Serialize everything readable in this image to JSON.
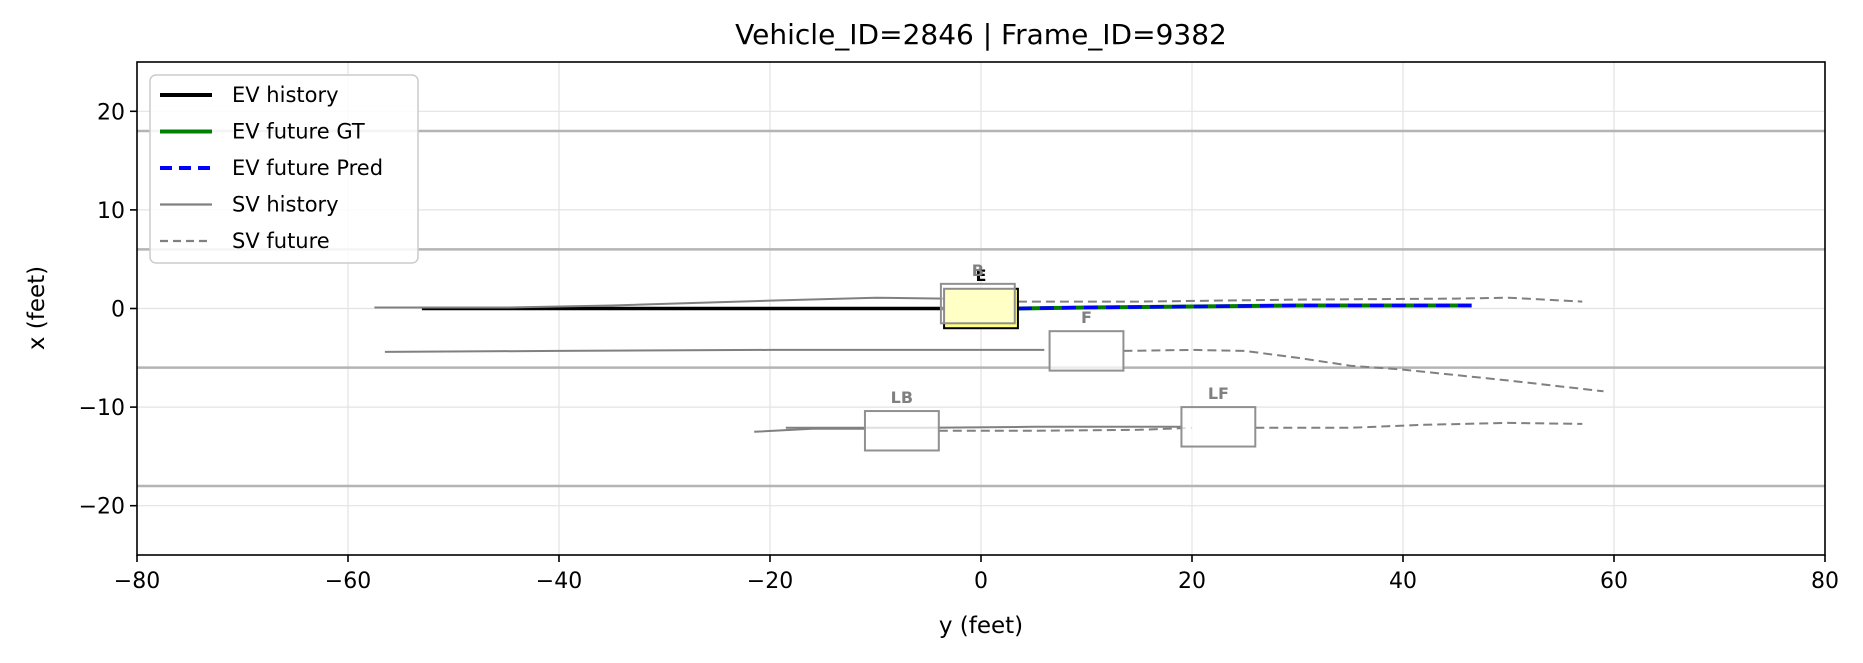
{
  "chart_data": {
    "type": "line",
    "title": "Vehicle_ID=2846  |  Frame_ID=9382",
    "xlabel": "y (feet)",
    "ylabel": "x (feet)",
    "xlim": [
      -80,
      80
    ],
    "ylim": [
      -25,
      25
    ],
    "xticks": [
      -80,
      -60,
      -40,
      -20,
      0,
      20,
      40,
      60,
      80
    ],
    "yticks": [
      -20,
      -10,
      0,
      10,
      20
    ],
    "xtick_labels": [
      "−80",
      "−60",
      "−40",
      "−20",
      "0",
      "20",
      "40",
      "60",
      "80"
    ],
    "ytick_labels": [
      "−20",
      "−10",
      "0",
      "10",
      "20"
    ],
    "grid": true,
    "legend_position": "top-left",
    "lane_lines": [
      18,
      6,
      -6,
      -18
    ],
    "legend": [
      {
        "label": "EV history",
        "color": "#000000",
        "dash": "solid",
        "width": 4
      },
      {
        "label": "EV future GT",
        "color": "#008000",
        "dash": "solid",
        "width": 4
      },
      {
        "label": "EV future Pred",
        "color": "#0000ff",
        "dash": "dashed",
        "width": 4
      },
      {
        "label": "SV history",
        "color": "#808080",
        "dash": "solid",
        "width": 2.2
      },
      {
        "label": "SV future",
        "color": "#808080",
        "dash": "dashed",
        "width": 2.2
      }
    ],
    "series": [
      {
        "name": "EV history",
        "color": "#000000",
        "dash": "solid",
        "width": 3.5,
        "points": [
          [
            -53,
            0
          ],
          [
            -40,
            0
          ],
          [
            -20,
            0
          ],
          [
            -3.5,
            0
          ]
        ]
      },
      {
        "name": "EV future GT",
        "color": "#008000",
        "dash": "solid",
        "width": 4,
        "points": [
          [
            3.5,
            0
          ],
          [
            10,
            0.1
          ],
          [
            20,
            0.2
          ],
          [
            30,
            0.3
          ],
          [
            40,
            0.3
          ],
          [
            46.5,
            0.3
          ]
        ]
      },
      {
        "name": "EV future Pred",
        "color": "#0000ff",
        "dash": "dashed",
        "width": 3.5,
        "points": [
          [
            3.5,
            0
          ],
          [
            10,
            0.1
          ],
          [
            20,
            0.2
          ],
          [
            30,
            0.3
          ],
          [
            40,
            0.3
          ],
          [
            46.5,
            0.3
          ]
        ]
      },
      {
        "name": "SV history",
        "vehicle": "B",
        "color": "#808080",
        "dash": "solid",
        "width": 2,
        "points": [
          [
            -57.5,
            0.1
          ],
          [
            -45,
            0.1
          ],
          [
            -35,
            0.3
          ],
          [
            -20,
            0.8
          ],
          [
            -10,
            1.1
          ],
          [
            -3.5,
            1.0
          ]
        ]
      },
      {
        "name": "SV future",
        "vehicle": "B",
        "color": "#808080",
        "dash": "dashed",
        "width": 2,
        "points": [
          [
            3.5,
            0.7
          ],
          [
            15,
            0.7
          ],
          [
            30,
            0.9
          ],
          [
            45,
            1.0
          ],
          [
            50,
            1.1
          ],
          [
            57,
            0.7
          ]
        ]
      },
      {
        "name": "SV history",
        "vehicle": "F",
        "color": "#808080",
        "dash": "solid",
        "width": 2,
        "points": [
          [
            -56.5,
            -4.4
          ],
          [
            -40,
            -4.3
          ],
          [
            -20,
            -4.2
          ],
          [
            0,
            -4.2
          ],
          [
            6,
            -4.2
          ]
        ]
      },
      {
        "name": "SV future",
        "vehicle": "F",
        "color": "#808080",
        "dash": "dashed",
        "width": 2,
        "points": [
          [
            13.5,
            -4.3
          ],
          [
            20,
            -4.2
          ],
          [
            25,
            -4.3
          ],
          [
            30,
            -5.0
          ],
          [
            35,
            -5.8
          ],
          [
            40,
            -6.2
          ],
          [
            50,
            -7.3
          ],
          [
            59,
            -8.4
          ]
        ]
      },
      {
        "name": "SV history",
        "vehicle": "LB",
        "color": "#808080",
        "dash": "solid",
        "width": 2,
        "points": [
          [
            -21.5,
            -12.5
          ],
          [
            -16,
            -12.2
          ],
          [
            -11,
            -12.2
          ]
        ]
      },
      {
        "name": "SV future",
        "vehicle": "LB",
        "color": "#808080",
        "dash": "dashed",
        "width": 2,
        "points": [
          [
            -4,
            -12.4
          ],
          [
            5,
            -12.4
          ],
          [
            15,
            -12.3
          ],
          [
            20,
            -12.1
          ]
        ]
      },
      {
        "name": "SV history",
        "vehicle": "LF",
        "color": "#808080",
        "dash": "solid",
        "width": 2,
        "points": [
          [
            -18.5,
            -12.1
          ],
          [
            -5,
            -12.1
          ],
          [
            5,
            -12.0
          ],
          [
            19,
            -12.0
          ]
        ]
      },
      {
        "name": "SV future",
        "vehicle": "LF",
        "color": "#808080",
        "dash": "dashed",
        "width": 2,
        "points": [
          [
            26,
            -12.1
          ],
          [
            35,
            -12.1
          ],
          [
            42,
            -11.8
          ],
          [
            50,
            -11.6
          ],
          [
            57,
            -11.7
          ]
        ]
      }
    ],
    "vehicles": [
      {
        "label": "E",
        "center": [
          0,
          0
        ],
        "length": 7,
        "width": 4,
        "fill": "#ffff80",
        "edge": "#000000",
        "text_color": "#000000"
      },
      {
        "label": "B",
        "center": [
          -0.3,
          0.5
        ],
        "length": 7,
        "width": 4,
        "fill": "#ffffff",
        "fill_opacity": 0.55,
        "edge": "#909090",
        "text_color": "#808080"
      },
      {
        "label": "F",
        "center": [
          10,
          -4.3
        ],
        "length": 7,
        "width": 4,
        "fill": "#ffffff",
        "fill_opacity": 0.75,
        "edge": "#909090",
        "text_color": "#808080"
      },
      {
        "label": "LB",
        "center": [
          -7.5,
          -12.4
        ],
        "length": 7,
        "width": 4,
        "fill": "#ffffff",
        "fill_opacity": 0.75,
        "edge": "#909090",
        "text_color": "#808080"
      },
      {
        "label": "LF",
        "center": [
          22.5,
          -12.0
        ],
        "length": 7,
        "width": 4,
        "fill": "#ffffff",
        "fill_opacity": 0.75,
        "edge": "#909090",
        "text_color": "#808080"
      }
    ]
  }
}
